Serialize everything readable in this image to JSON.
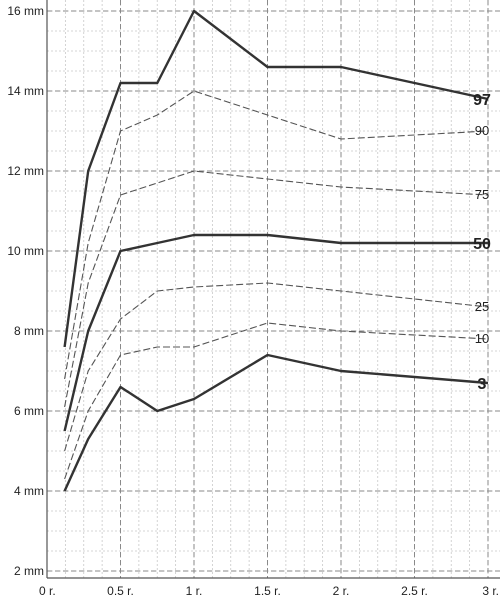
{
  "chart_data": {
    "type": "line",
    "title": "",
    "xlabel": "",
    "ylabel": "",
    "xlim": [
      0,
      3
    ],
    "ylim": [
      2,
      16
    ],
    "grid": true,
    "x_ticks": [
      {
        "value": 0,
        "label": "0 r."
      },
      {
        "value": 0.5,
        "label": "0.5 r."
      },
      {
        "value": 1,
        "label": "1 r."
      },
      {
        "value": 1.5,
        "label": "1.5 r."
      },
      {
        "value": 2,
        "label": "2 r."
      },
      {
        "value": 2.5,
        "label": "2.5 r."
      },
      {
        "value": 3,
        "label": "3 r."
      }
    ],
    "y_ticks": [
      {
        "value": 2,
        "label": "2 mm"
      },
      {
        "value": 4,
        "label": "4 mm"
      },
      {
        "value": 6,
        "label": "6 mm"
      },
      {
        "value": 8,
        "label": "8 mm"
      },
      {
        "value": 10,
        "label": "10 mm"
      },
      {
        "value": 12,
        "label": "12 mm"
      },
      {
        "value": 14,
        "label": "14 mm"
      },
      {
        "value": 16,
        "label": "16 mm"
      }
    ],
    "series": [
      {
        "name": "97",
        "style": "solid",
        "color": "#333333",
        "points": [
          [
            0.12,
            7.6
          ],
          [
            0.28,
            12.0
          ],
          [
            0.5,
            14.2
          ],
          [
            0.75,
            14.2
          ],
          [
            1.0,
            16.0
          ],
          [
            1.5,
            14.6
          ],
          [
            2.0,
            14.6
          ],
          [
            3.0,
            13.8
          ]
        ]
      },
      {
        "name": "90",
        "style": "dashed",
        "color": "#555555",
        "points": [
          [
            0.12,
            6.8
          ],
          [
            0.28,
            10.2
          ],
          [
            0.5,
            13.0
          ],
          [
            0.75,
            13.4
          ],
          [
            1.0,
            14.0
          ],
          [
            1.5,
            13.4
          ],
          [
            2.0,
            12.8
          ],
          [
            3.0,
            13.0
          ]
        ]
      },
      {
        "name": "75",
        "style": "dashed",
        "color": "#555555",
        "points": [
          [
            0.12,
            6.1
          ],
          [
            0.28,
            9.2
          ],
          [
            0.5,
            11.4
          ],
          [
            0.75,
            11.7
          ],
          [
            1.0,
            12.0
          ],
          [
            1.5,
            11.8
          ],
          [
            2.0,
            11.6
          ],
          [
            3.0,
            11.4
          ]
        ]
      },
      {
        "name": "50",
        "style": "solid",
        "color": "#333333",
        "points": [
          [
            0.12,
            5.5
          ],
          [
            0.28,
            8.0
          ],
          [
            0.5,
            10.0
          ],
          [
            0.75,
            10.2
          ],
          [
            1.0,
            10.4
          ],
          [
            1.5,
            10.4
          ],
          [
            2.0,
            10.2
          ],
          [
            3.0,
            10.2
          ]
        ]
      },
      {
        "name": "25",
        "style": "dashed",
        "color": "#555555",
        "points": [
          [
            0.12,
            5.0
          ],
          [
            0.28,
            7.0
          ],
          [
            0.5,
            8.3
          ],
          [
            0.75,
            9.0
          ],
          [
            1.0,
            9.1
          ],
          [
            1.5,
            9.2
          ],
          [
            2.0,
            9.0
          ],
          [
            3.0,
            8.6
          ]
        ]
      },
      {
        "name": "10",
        "style": "dashed",
        "color": "#555555",
        "points": [
          [
            0.12,
            4.3
          ],
          [
            0.28,
            6.0
          ],
          [
            0.5,
            7.4
          ],
          [
            0.75,
            7.6
          ],
          [
            1.0,
            7.6
          ],
          [
            1.5,
            8.2
          ],
          [
            2.0,
            8.0
          ],
          [
            3.0,
            7.8
          ]
        ]
      },
      {
        "name": "3",
        "style": "solid",
        "color": "#333333",
        "points": [
          [
            0.12,
            4.0
          ],
          [
            0.28,
            5.3
          ],
          [
            0.5,
            6.6
          ],
          [
            0.75,
            6.0
          ],
          [
            1.0,
            6.3
          ],
          [
            1.5,
            7.4
          ],
          [
            2.0,
            7.0
          ],
          [
            3.0,
            6.7
          ]
        ]
      }
    ]
  }
}
